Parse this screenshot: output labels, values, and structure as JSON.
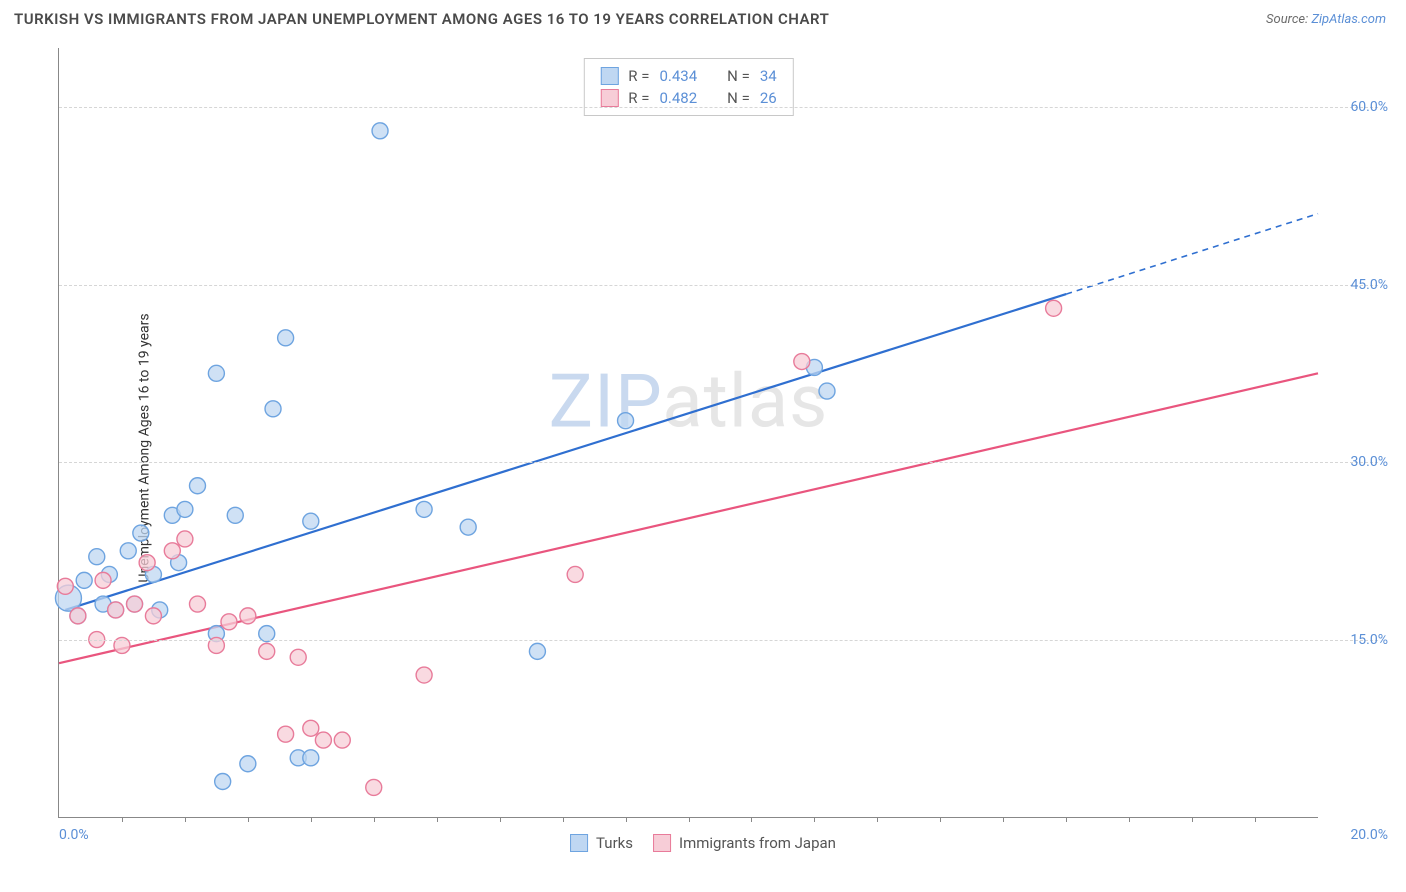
{
  "title": "TURKISH VS IMMIGRANTS FROM JAPAN UNEMPLOYMENT AMONG AGES 16 TO 19 YEARS CORRELATION CHART",
  "source_prefix": "Source: ",
  "source_link": "ZipAtlas.com",
  "y_axis_label": "Unemployment Among Ages 16 to 19 years",
  "watermark_a": "ZIP",
  "watermark_b": "atlas",
  "chart": {
    "type": "scatter-with-regression",
    "xlim": [
      0,
      20
    ],
    "ylim": [
      0,
      65
    ],
    "x_ticks": [
      0,
      20
    ],
    "x_tick_labels": [
      "0.0%",
      "20.0%"
    ],
    "x_minor_ticks": [
      1,
      2,
      3,
      4,
      5,
      6,
      7,
      8,
      9,
      10,
      11,
      12,
      13,
      14,
      15,
      16,
      17,
      18,
      19
    ],
    "y_ticks": [
      15,
      30,
      45,
      60
    ],
    "y_tick_labels": [
      "15.0%",
      "30.0%",
      "45.0%",
      "60.0%"
    ],
    "grid_color": "#d6d6d6",
    "axis_color": "#888888",
    "tick_label_color": "#5b8fd6",
    "background": "#ffffff",
    "marker_radius": 8,
    "marker_radius_large": 13,
    "marker_stroke_width": 1.4,
    "line_width": 2.2,
    "series": [
      {
        "name": "Turks",
        "fill": "#bfd7f2",
        "stroke": "#6ea4e0",
        "line_color": "#2f6fd0",
        "R": "0.434",
        "N": "34",
        "points": [
          [
            0.15,
            18.5,
            1.6
          ],
          [
            0.3,
            17.0
          ],
          [
            0.4,
            20.0
          ],
          [
            0.6,
            22.0
          ],
          [
            0.7,
            18.0
          ],
          [
            0.8,
            20.5
          ],
          [
            0.9,
            17.5
          ],
          [
            1.1,
            22.5
          ],
          [
            1.2,
            18.0
          ],
          [
            1.3,
            24.0
          ],
          [
            1.5,
            20.5
          ],
          [
            1.6,
            17.5
          ],
          [
            1.8,
            25.5
          ],
          [
            1.9,
            21.5
          ],
          [
            2.0,
            26.0
          ],
          [
            2.2,
            28.0
          ],
          [
            2.5,
            15.5
          ],
          [
            2.5,
            37.5
          ],
          [
            2.6,
            3.0
          ],
          [
            2.8,
            25.5
          ],
          [
            3.0,
            4.5
          ],
          [
            3.3,
            15.5
          ],
          [
            3.4,
            34.5
          ],
          [
            3.6,
            40.5
          ],
          [
            3.8,
            5.0
          ],
          [
            4.0,
            5.0
          ],
          [
            4.0,
            25.0
          ],
          [
            5.1,
            58.0
          ],
          [
            5.8,
            26.0
          ],
          [
            6.5,
            24.5
          ],
          [
            7.6,
            14.0
          ],
          [
            9.0,
            33.5
          ],
          [
            12.0,
            38.0
          ],
          [
            12.2,
            36.0
          ]
        ],
        "regression": {
          "x1": 0.1,
          "y1": 17.5,
          "x2": 16.0,
          "y2": 44.2
        },
        "extrapolate": {
          "x1": 16.0,
          "y1": 44.2,
          "x2": 20.0,
          "y2": 51.0
        }
      },
      {
        "name": "Immigrants from Japan",
        "fill": "#f7cdd7",
        "stroke": "#e87b9a",
        "line_color": "#e9557e",
        "R": "0.482",
        "N": "26",
        "points": [
          [
            0.1,
            19.5
          ],
          [
            0.3,
            17.0
          ],
          [
            0.6,
            15.0
          ],
          [
            0.7,
            20.0
          ],
          [
            0.9,
            17.5
          ],
          [
            1.0,
            14.5
          ],
          [
            1.2,
            18.0
          ],
          [
            1.4,
            21.5
          ],
          [
            1.5,
            17.0
          ],
          [
            1.8,
            22.5
          ],
          [
            2.0,
            23.5
          ],
          [
            2.2,
            18.0
          ],
          [
            2.5,
            14.5
          ],
          [
            2.7,
            16.5
          ],
          [
            3.0,
            17.0
          ],
          [
            3.3,
            14.0
          ],
          [
            3.6,
            7.0
          ],
          [
            3.8,
            13.5
          ],
          [
            4.0,
            7.5
          ],
          [
            4.2,
            6.5
          ],
          [
            4.5,
            6.5
          ],
          [
            5.0,
            2.5
          ],
          [
            5.8,
            12.0
          ],
          [
            8.2,
            20.5
          ],
          [
            11.8,
            38.5
          ],
          [
            15.8,
            43.0
          ]
        ],
        "regression": {
          "x1": 0.0,
          "y1": 13.0,
          "x2": 20.0,
          "y2": 37.5
        }
      }
    ]
  },
  "stats_box": {
    "R_label": "R =",
    "N_label": "N ="
  },
  "legend": {
    "items": [
      "Turks",
      "Immigrants from Japan"
    ]
  }
}
